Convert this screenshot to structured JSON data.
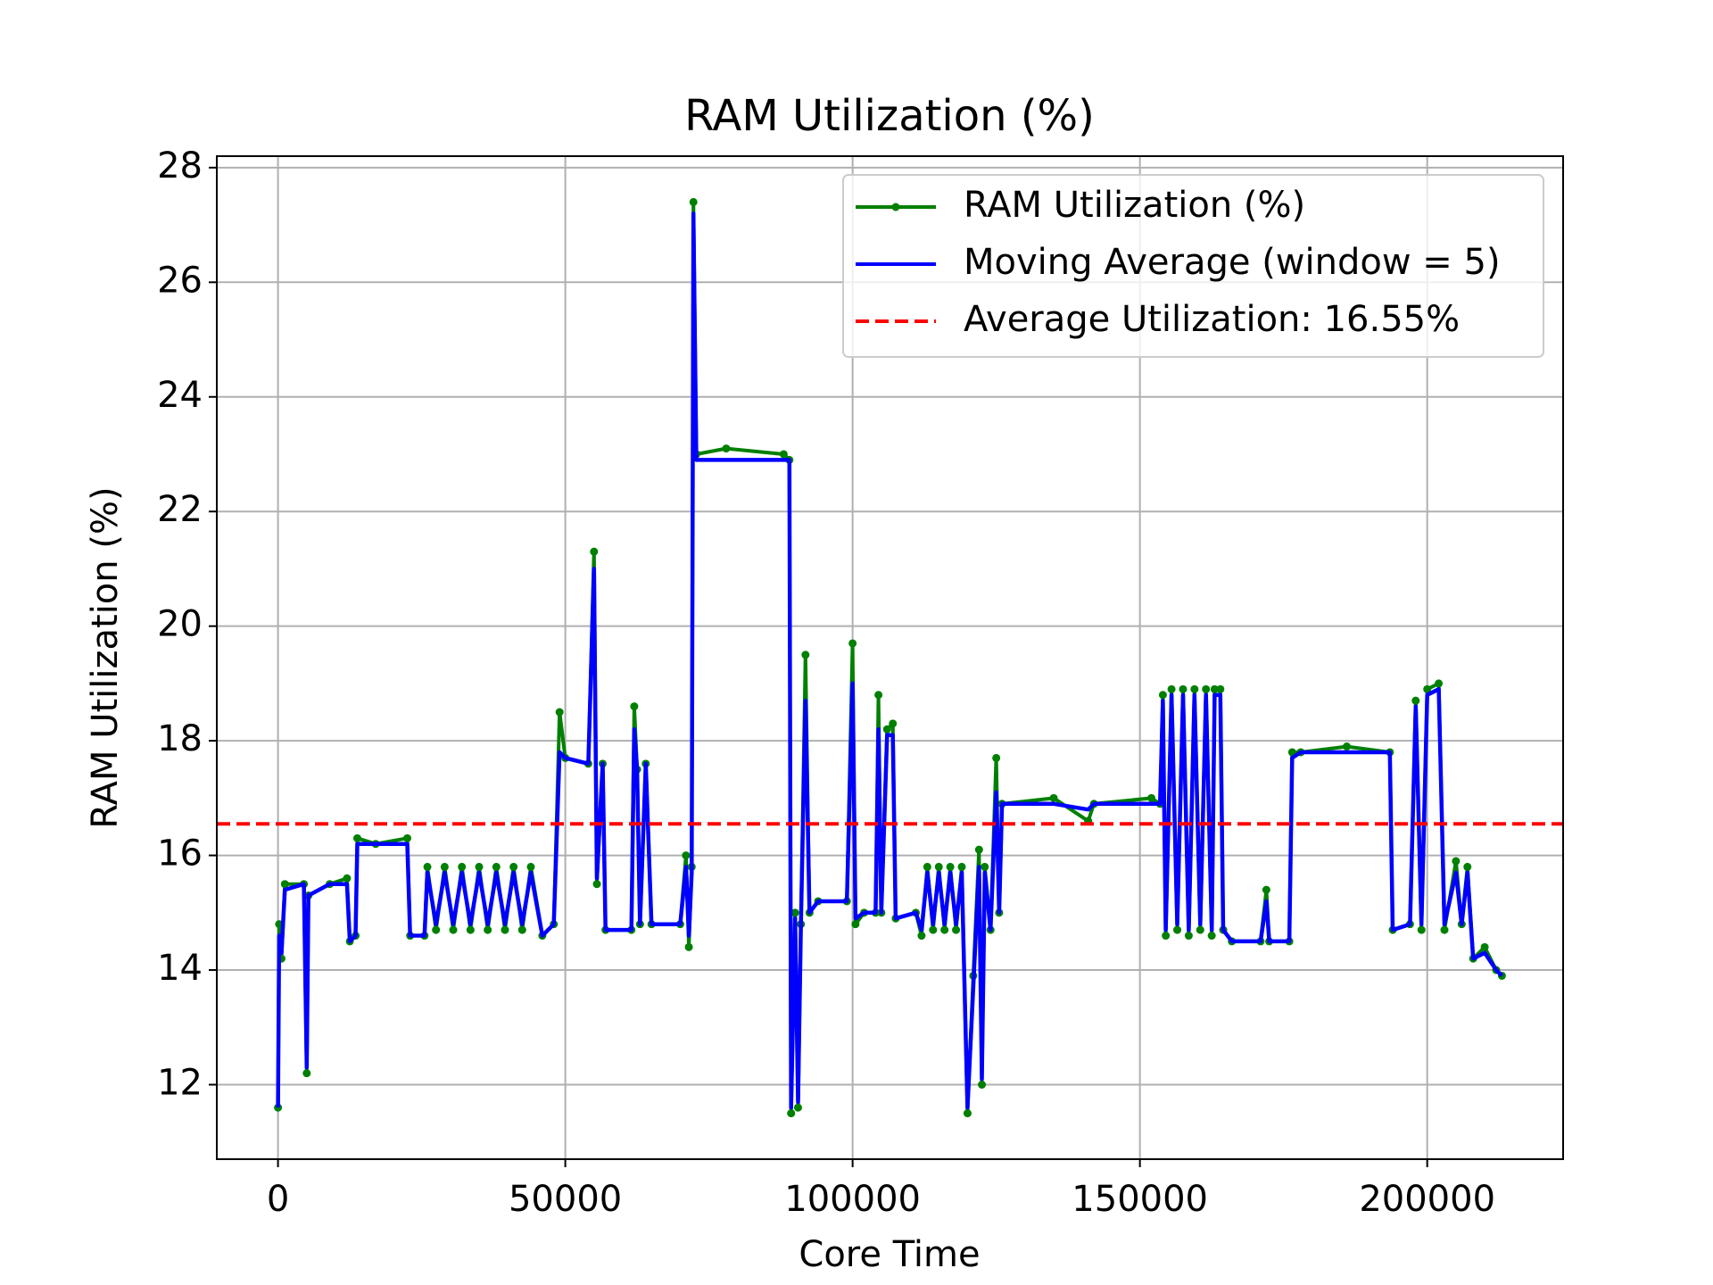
{
  "chart_data": {
    "type": "line",
    "title": "RAM Utilization (%)",
    "x_label": "Core Time",
    "y_label": "RAM Utilization (%)",
    "x": [
      0,
      200,
      600,
      1200,
      4500,
      5000,
      5300,
      9000,
      12000,
      12500,
      13500,
      13800,
      17000,
      22500,
      23000,
      25500,
      26000,
      27500,
      29000,
      30500,
      32000,
      33500,
      35000,
      36500,
      38000,
      39500,
      41000,
      42500,
      44000,
      46000,
      48000,
      49000,
      50000,
      54000,
      55000,
      55500,
      56500,
      57000,
      61500,
      62000,
      62500,
      63000,
      64000,
      65000,
      70000,
      71000,
      71500,
      72000,
      72300,
      72800,
      78000,
      88000,
      89000,
      89300,
      90000,
      90500,
      91000,
      91800,
      92500,
      94000,
      99000,
      100000,
      100500,
      102000,
      104000,
      104500,
      105000,
      106000,
      107000,
      107500,
      111000,
      112000,
      113000,
      114000,
      115000,
      116000,
      117000,
      118000,
      119000,
      120000,
      121000,
      122000,
      122500,
      123000,
      124000,
      125000,
      125500,
      126000,
      135000,
      141000,
      142000,
      152000,
      153500,
      154000,
      154500,
      155500,
      156500,
      157500,
      158500,
      159500,
      160500,
      161500,
      162500,
      163000,
      164000,
      164500,
      166000,
      171000,
      172000,
      172500,
      176000,
      176500,
      178000,
      186000,
      193500,
      194000,
      197000,
      198000,
      199000,
      200000,
      202000,
      203000,
      205000,
      206000,
      207000,
      208000,
      210000,
      212000,
      213000
    ],
    "series": [
      {
        "name": "RAM Utilization (%)",
        "color": "#008000",
        "marker": true,
        "values": [
          11.6,
          14.8,
          14.2,
          15.5,
          15.5,
          12.2,
          15.3,
          15.5,
          15.6,
          14.5,
          14.6,
          16.3,
          16.2,
          16.3,
          14.6,
          14.6,
          15.8,
          14.7,
          15.8,
          14.7,
          15.8,
          14.7,
          15.8,
          14.7,
          15.8,
          14.7,
          15.8,
          14.7,
          15.8,
          14.6,
          14.8,
          18.5,
          17.7,
          17.6,
          21.3,
          15.5,
          17.6,
          14.7,
          14.7,
          18.6,
          17.5,
          14.8,
          17.6,
          14.8,
          14.8,
          16.0,
          14.4,
          15.8,
          27.4,
          23.0,
          23.1,
          23.0,
          22.9,
          11.5,
          15.0,
          11.6,
          14.8,
          19.5,
          15.0,
          15.2,
          15.2,
          19.7,
          14.8,
          15.0,
          15.0,
          18.8,
          15.0,
          18.2,
          18.3,
          14.9,
          15.0,
          14.6,
          15.8,
          14.7,
          15.8,
          14.7,
          15.8,
          14.7,
          15.8,
          11.5,
          13.9,
          16.1,
          12.0,
          15.8,
          14.7,
          17.7,
          15.0,
          16.9,
          17.0,
          16.6,
          16.9,
          17.0,
          16.9,
          18.8,
          14.6,
          18.9,
          14.7,
          18.9,
          14.6,
          18.9,
          14.7,
          18.9,
          14.6,
          18.9,
          18.9,
          14.7,
          14.5,
          14.5,
          15.4,
          14.5,
          14.5,
          17.8,
          17.8,
          17.9,
          17.8,
          14.7,
          14.8,
          18.7,
          14.7,
          18.9,
          19.0,
          14.7,
          15.9,
          14.8,
          15.8,
          14.2,
          14.4,
          14.0,
          13.9
        ]
      },
      {
        "name": "Moving Average (window = 5)",
        "color": "#0000ff",
        "marker": false,
        "values": [
          11.6,
          14.6,
          14.3,
          15.4,
          15.5,
          12.3,
          15.3,
          15.5,
          15.5,
          14.5,
          14.6,
          16.2,
          16.2,
          16.2,
          14.6,
          14.6,
          15.7,
          14.8,
          15.7,
          14.8,
          15.7,
          14.8,
          15.7,
          14.8,
          15.7,
          14.8,
          15.7,
          14.8,
          15.7,
          14.6,
          14.8,
          17.8,
          17.7,
          17.6,
          21.0,
          15.6,
          17.6,
          14.7,
          14.7,
          18.2,
          17.5,
          14.8,
          17.6,
          14.8,
          14.8,
          15.8,
          14.6,
          15.7,
          27.2,
          22.9,
          22.9,
          22.9,
          22.9,
          11.6,
          14.9,
          11.7,
          14.8,
          18.7,
          15.0,
          15.2,
          15.2,
          19.0,
          14.9,
          15.0,
          15.0,
          18.2,
          15.0,
          18.1,
          18.1,
          14.9,
          15.0,
          14.7,
          15.7,
          14.8,
          15.7,
          14.8,
          15.7,
          14.8,
          15.7,
          11.6,
          13.7,
          15.8,
          12.1,
          15.7,
          14.7,
          17.1,
          15.0,
          16.9,
          16.9,
          16.8,
          16.9,
          16.9,
          16.9,
          18.7,
          14.7,
          18.8,
          14.8,
          18.8,
          14.7,
          18.8,
          14.8,
          18.8,
          14.7,
          18.8,
          18.8,
          14.7,
          14.5,
          14.5,
          15.2,
          14.5,
          14.5,
          17.7,
          17.8,
          17.8,
          17.8,
          14.7,
          14.8,
          18.6,
          14.8,
          18.8,
          18.9,
          14.8,
          15.7,
          14.8,
          15.7,
          14.2,
          14.3,
          14.0,
          13.9
        ]
      }
    ],
    "hline": {
      "name": "Average Utilization: 16.55%",
      "value": 16.55,
      "color": "#ff0000",
      "dashed": true
    },
    "xlim": [
      -10650,
      223650
    ],
    "xticks": [
      0,
      50000,
      100000,
      150000,
      200000
    ],
    "ylim": [
      10.7,
      28.2
    ],
    "yticks": [
      12,
      14,
      16,
      18,
      20,
      22,
      24,
      26,
      28
    ],
    "grid": true,
    "legend": "upper right"
  }
}
